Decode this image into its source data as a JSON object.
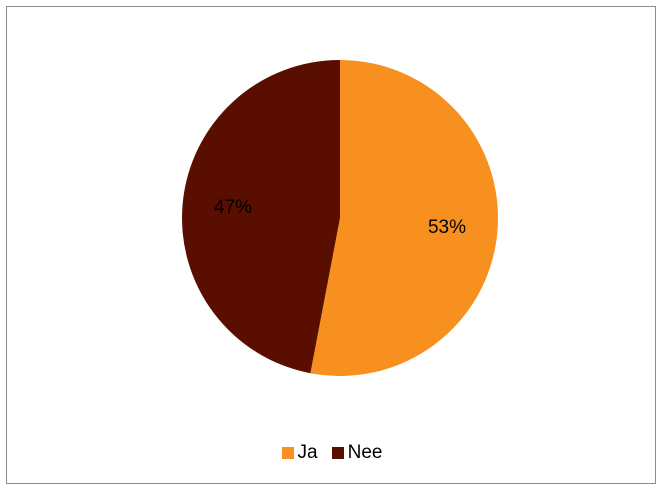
{
  "chart_data": {
    "type": "pie",
    "categories": [
      "Ja",
      "Nee"
    ],
    "values": [
      53,
      47
    ],
    "labels": [
      "53%",
      "47%"
    ],
    "colors": [
      "#f7901e",
      "#5a0e00"
    ],
    "legend_position": "bottom",
    "start_angle_deg": 0,
    "direction": "clockwise"
  }
}
